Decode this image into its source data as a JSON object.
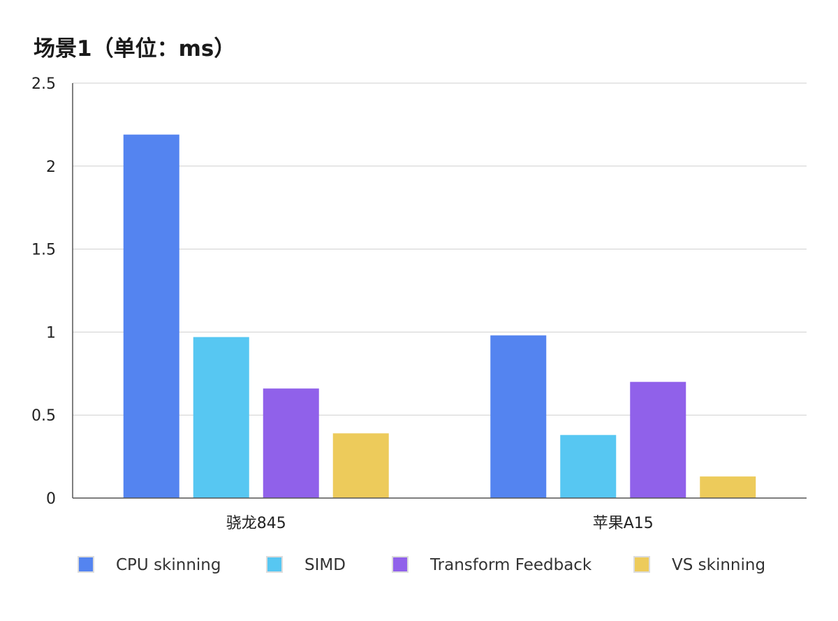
{
  "chart_data": {
    "type": "bar",
    "title": "场景1（单位：ms）",
    "xlabel": "",
    "ylabel": "",
    "ylim": [
      0,
      2.5
    ],
    "yticks": [
      "0",
      "0.5",
      "1",
      "1.5",
      "2",
      "2.5"
    ],
    "ytick_values": [
      0,
      0.5,
      1,
      1.5,
      2,
      2.5
    ],
    "grid": true,
    "legend_position": "bottom",
    "categories": [
      "骁龙845",
      "苹果A15"
    ],
    "series": [
      {
        "name": "CPU skinning",
        "color": "#5484f0",
        "values": [
          2.19,
          0.98
        ]
      },
      {
        "name": "SIMD",
        "color": "#57c7f2",
        "values": [
          0.97,
          0.38
        ]
      },
      {
        "name": "Transform Feedback",
        "color": "#9061ea",
        "values": [
          0.66,
          0.7
        ]
      },
      {
        "name": "VS skinning",
        "color": "#edcb5b",
        "values": [
          0.39,
          0.13
        ]
      }
    ]
  }
}
